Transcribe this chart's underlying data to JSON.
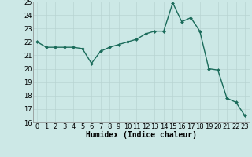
{
  "x": [
    0,
    1,
    2,
    3,
    4,
    5,
    6,
    7,
    8,
    9,
    10,
    11,
    12,
    13,
    14,
    15,
    16,
    17,
    18,
    19,
    20,
    21,
    22,
    23
  ],
  "y": [
    22.0,
    21.6,
    21.6,
    21.6,
    21.6,
    21.5,
    20.4,
    21.3,
    21.6,
    21.8,
    22.0,
    22.2,
    22.6,
    22.8,
    22.8,
    24.9,
    23.5,
    23.8,
    22.8,
    20.0,
    19.9,
    17.8,
    17.5,
    16.5
  ],
  "xlabel": "Humidex (Indice chaleur)",
  "ylim": [
    16,
    25
  ],
  "yticks": [
    16,
    17,
    18,
    19,
    20,
    21,
    22,
    23,
    24,
    25
  ],
  "xticks": [
    0,
    1,
    2,
    3,
    4,
    5,
    6,
    7,
    8,
    9,
    10,
    11,
    12,
    13,
    14,
    15,
    16,
    17,
    18,
    19,
    20,
    21,
    22,
    23
  ],
  "line_color": "#1a6b5a",
  "marker_color": "#1a6b5a",
  "bg_color": "#cce8e6",
  "grid_color_major": "#b8d4d2",
  "grid_color_minor": "#b8d4d2",
  "axis_label_fontsize": 7,
  "tick_fontsize": 6,
  "marker": "D",
  "markersize": 2.0,
  "linewidth": 1.0
}
